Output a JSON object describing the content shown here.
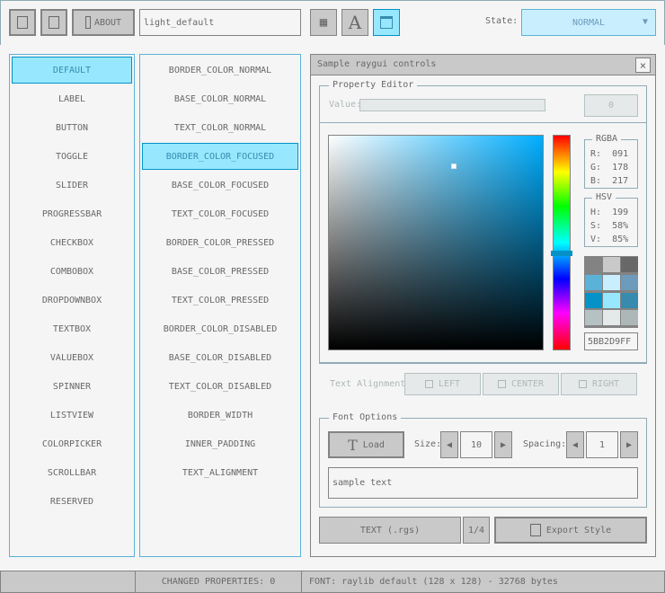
{
  "toolbar": {
    "about_label": "ABOUT",
    "style_name": "light_default",
    "state_label": "State:",
    "state_value": "NORMAL"
  },
  "controls": [
    "DEFAULT",
    "LABEL",
    "BUTTON",
    "TOGGLE",
    "SLIDER",
    "PROGRESSBAR",
    "CHECKBOX",
    "COMBOBOX",
    "DROPDOWNBOX",
    "TEXTBOX",
    "VALUEBOX",
    "SPINNER",
    "LISTVIEW",
    "COLORPICKER",
    "SCROLLBAR",
    "RESERVED"
  ],
  "properties": [
    "BORDER_COLOR_NORMAL",
    "BASE_COLOR_NORMAL",
    "TEXT_COLOR_NORMAL",
    "BORDER_COLOR_FOCUSED",
    "BASE_COLOR_FOCUSED",
    "TEXT_COLOR_FOCUSED",
    "BORDER_COLOR_PRESSED",
    "BASE_COLOR_PRESSED",
    "TEXT_COLOR_PRESSED",
    "BORDER_COLOR_DISABLED",
    "BASE_COLOR_DISABLED",
    "TEXT_COLOR_DISABLED",
    "BORDER_WIDTH",
    "INNER_PADDING",
    "TEXT_ALIGNMENT"
  ],
  "window": {
    "title": "Sample raygui controls",
    "close": "×"
  },
  "property_editor": {
    "title": "Property Editor",
    "value_label": "Value:",
    "value": "0",
    "rgba": {
      "title": "RGBA",
      "r": "R:  091",
      "g": "G:  178",
      "b": "B:  217"
    },
    "hsv": {
      "title": "HSV",
      "h": "H:  199",
      "s": "S:  58%",
      "v": "V:  85%"
    },
    "hex": "5BB2D9FF",
    "hue": 199,
    "palette": [
      "#838383",
      "#c9c9c9",
      "#686868",
      "#5bb2d9",
      "#c9effe",
      "#6c9bbc",
      "#0492c7",
      "#97e8ff",
      "#368baf",
      "#b5c1c2",
      "#e6e9e9",
      "#aeb7b8"
    ],
    "text_alignment_label": "Text Alignment:",
    "align": [
      "LEFT",
      "CENTER",
      "RIGHT"
    ]
  },
  "font_options": {
    "title": "Font Options",
    "load": "Load",
    "size_label": "Size:",
    "size": "10",
    "spacing_label": "Spacing:",
    "spacing": "1",
    "sample": "sample text"
  },
  "bottom": {
    "format": "TEXT (.rgs)",
    "page": "1/4",
    "export": "Export Style"
  },
  "status": {
    "left": "",
    "changed": "CHANGED PROPERTIES: 0",
    "font": "FONT: raylib default (128 x 128) - 32768 bytes"
  }
}
